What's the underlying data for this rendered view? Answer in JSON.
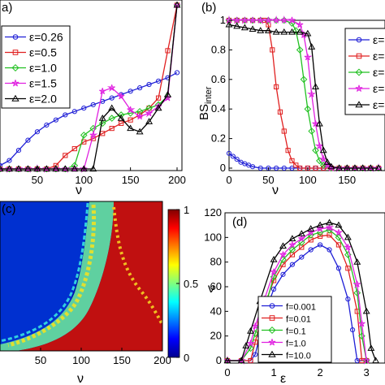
{
  "chart_data": [
    {
      "panel_label": "a)",
      "type": "line",
      "xlabel": "ν",
      "xlim": [
        10,
        200
      ],
      "ylim": [
        0,
        1
      ],
      "xticks": [
        50,
        100,
        150,
        200
      ],
      "legend_position": "top-left",
      "series": [
        {
          "name": "ε=0.26",
          "color": "#1f1fd6",
          "marker": "circle",
          "x": [
            10,
            20,
            30,
            40,
            50,
            60,
            70,
            80,
            90,
            100,
            110,
            120,
            130,
            140,
            150,
            160,
            170,
            180,
            190,
            200
          ],
          "y": [
            0.02,
            0.05,
            0.11,
            0.17,
            0.22,
            0.26,
            0.29,
            0.32,
            0.34,
            0.36,
            0.38,
            0.4,
            0.42,
            0.44,
            0.46,
            0.48,
            0.5,
            0.52,
            0.54,
            0.57
          ]
        },
        {
          "name": "ε=0.5",
          "color": "#e02020",
          "marker": "square",
          "x": [
            10,
            20,
            30,
            40,
            50,
            60,
            70,
            80,
            90,
            100,
            110,
            120,
            130,
            140,
            150,
            160,
            170,
            180,
            190,
            200
          ],
          "y": [
            0,
            0,
            0,
            0,
            0,
            0,
            0.02,
            0.08,
            0.12,
            0.16,
            0.18,
            0.21,
            0.24,
            0.27,
            0.29,
            0.32,
            0.36,
            0.42,
            0.7,
            0.97
          ]
        },
        {
          "name": "ε=1.0",
          "color": "#20c020",
          "marker": "diamond",
          "x": [
            10,
            20,
            30,
            40,
            50,
            60,
            70,
            80,
            90,
            100,
            110,
            120,
            130,
            140,
            150,
            160,
            170,
            180,
            190,
            200
          ],
          "y": [
            0,
            0,
            0,
            0,
            0,
            0,
            0,
            0,
            0.02,
            0.2,
            0.24,
            0.27,
            0.3,
            0.32,
            0.33,
            0.34,
            0.36,
            0.38,
            0.43,
            0.97
          ]
        },
        {
          "name": "ε=1.5",
          "color": "#e020e0",
          "marker": "star",
          "x": [
            10,
            20,
            30,
            40,
            50,
            60,
            70,
            80,
            90,
            100,
            110,
            120,
            130,
            140,
            150,
            160,
            170,
            180,
            190,
            200
          ],
          "y": [
            0,
            0,
            0,
            0,
            0,
            0,
            0,
            0,
            0,
            0,
            0.2,
            0.46,
            0.48,
            0.43,
            0.35,
            0.31,
            0.33,
            0.37,
            0.42,
            0.97
          ]
        },
        {
          "name": "ε=2.0",
          "color": "#000000",
          "marker": "triangle",
          "x": [
            10,
            20,
            30,
            40,
            50,
            60,
            70,
            80,
            90,
            100,
            110,
            120,
            130,
            140,
            150,
            160,
            170,
            180,
            190,
            200
          ],
          "y": [
            0,
            0,
            0,
            0,
            0,
            0,
            0,
            0,
            0,
            0,
            0,
            0.3,
            0.36,
            0.3,
            0.24,
            0.22,
            0.28,
            0.36,
            0.44,
            0.97
          ]
        }
      ]
    },
    {
      "panel_label": "(b)",
      "type": "line",
      "xlabel": "ν",
      "ylabel": "BS",
      "ylabel_sub": "inter",
      "xlim": [
        0,
        190
      ],
      "ylim": [
        0,
        1
      ],
      "xticks": [
        0,
        50,
        100,
        150
      ],
      "yticks": [
        0,
        0.2,
        0.4,
        0.6,
        0.8,
        1
      ],
      "legend_position": "right",
      "series": [
        {
          "name": "ε=",
          "color": "#1f1fd6",
          "marker": "circle",
          "x": [
            0,
            5,
            10,
            15,
            20,
            25,
            30,
            40,
            50,
            60,
            70,
            80,
            90,
            100,
            110,
            120,
            130,
            140,
            150,
            160,
            170,
            180,
            190
          ],
          "y": [
            0.1,
            0.08,
            0.06,
            0.04,
            0.03,
            0.02,
            0.01,
            0,
            0,
            0,
            0,
            0,
            0,
            0,
            0,
            0,
            0,
            0,
            0,
            0,
            0,
            0,
            0
          ]
        },
        {
          "name": "ε=",
          "color": "#e02020",
          "marker": "square",
          "x": [
            0,
            10,
            20,
            30,
            40,
            45,
            50,
            55,
            60,
            65,
            70,
            75,
            80,
            85,
            90,
            100,
            110,
            120,
            130,
            140,
            150,
            160,
            170,
            180,
            190
          ],
          "y": [
            1,
            1,
            1,
            1,
            1,
            1,
            0.97,
            0.8,
            0.55,
            0.38,
            0.25,
            0.12,
            0.05,
            0.02,
            0,
            0,
            0,
            0,
            0,
            0,
            0,
            0,
            0,
            0,
            0
          ]
        },
        {
          "name": "ε=",
          "color": "#20c020",
          "marker": "diamond",
          "x": [
            0,
            10,
            20,
            30,
            40,
            50,
            60,
            70,
            80,
            85,
            90,
            95,
            100,
            105,
            110,
            115,
            120,
            130,
            140,
            150,
            160,
            170,
            180,
            190
          ],
          "y": [
            1,
            1,
            1,
            1,
            1,
            1,
            1,
            1,
            0.98,
            0.93,
            0.8,
            0.6,
            0.4,
            0.25,
            0.12,
            0.05,
            0.02,
            0,
            0,
            0,
            0,
            0,
            0,
            0
          ]
        },
        {
          "name": "ε=",
          "color": "#e020e0",
          "marker": "star",
          "x": [
            0,
            10,
            20,
            30,
            40,
            50,
            60,
            70,
            80,
            90,
            95,
            100,
            105,
            110,
            115,
            120,
            125,
            130,
            140,
            150,
            160,
            170,
            180,
            190
          ],
          "y": [
            1,
            1,
            1,
            1,
            1,
            1,
            1,
            1,
            1,
            0.97,
            0.9,
            0.75,
            0.5,
            0.3,
            0.15,
            0.06,
            0.02,
            0,
            0,
            0,
            0,
            0,
            0,
            0
          ]
        },
        {
          "name": "ε=",
          "color": "#000000",
          "marker": "triangle",
          "x": [
            0,
            10,
            20,
            30,
            40,
            50,
            60,
            70,
            80,
            90,
            100,
            105,
            110,
            115,
            120,
            125,
            130,
            140,
            150,
            160,
            170,
            180,
            190
          ],
          "y": [
            0.97,
            0.96,
            0.95,
            0.94,
            0.93,
            0.93,
            0.92,
            0.92,
            0.92,
            0.92,
            0.91,
            0.82,
            0.55,
            0.3,
            0.12,
            0.04,
            0.01,
            0,
            0,
            0,
            0,
            0,
            0
          ]
        }
      ]
    },
    {
      "panel_label": "(c)",
      "type": "heatmap",
      "xlabel": "ν",
      "xlim": [
        0,
        200
      ],
      "xticks": [
        50,
        100,
        150,
        200
      ],
      "colorbar": {
        "min": 0,
        "max": 1,
        "ticks": [
          0,
          0.5,
          1
        ],
        "colormap": "jet"
      }
    },
    {
      "panel_label": "(d)",
      "type": "line",
      "xlabel": "ε",
      "ylabel": "ν",
      "xlim": [
        0,
        3.4
      ],
      "ylim": [
        0,
        120
      ],
      "xticks": [
        0,
        1,
        2,
        3
      ],
      "yticks": [
        0,
        20,
        40,
        60,
        80,
        100,
        120
      ],
      "legend_position": "bottom-left",
      "series": [
        {
          "name": "f=0.001",
          "color": "#1f1fd6",
          "marker": "circle",
          "x": [
            0,
            0.3,
            0.5,
            0.6,
            0.7,
            0.8,
            1.0,
            1.2,
            1.4,
            1.6,
            1.8,
            2.0,
            2.2,
            2.4,
            2.6,
            2.7,
            2.8,
            3.0
          ],
          "y": [
            0,
            0,
            0,
            5,
            20,
            38,
            58,
            70,
            78,
            84,
            90,
            94,
            90,
            75,
            50,
            25,
            0,
            0
          ]
        },
        {
          "name": "f=0.01",
          "color": "#e02020",
          "marker": "square",
          "x": [
            0,
            0.3,
            0.5,
            0.6,
            0.7,
            0.8,
            1.0,
            1.2,
            1.4,
            1.6,
            1.8,
            2.0,
            2.2,
            2.4,
            2.6,
            2.8,
            2.9,
            3.0
          ],
          "y": [
            0,
            0,
            0,
            15,
            30,
            45,
            65,
            78,
            86,
            92,
            98,
            101,
            102,
            94,
            75,
            40,
            0,
            0
          ]
        },
        {
          "name": "f=0.1",
          "color": "#20c020",
          "marker": "diamond",
          "x": [
            0,
            0.3,
            0.5,
            0.6,
            0.8,
            1.0,
            1.2,
            1.4,
            1.6,
            1.8,
            2.0,
            2.2,
            2.4,
            2.6,
            2.8,
            2.9,
            3.0
          ],
          "y": [
            0,
            0,
            10,
            22,
            42,
            68,
            82,
            90,
            96,
            102,
            104,
            106,
            100,
            86,
            55,
            20,
            0
          ]
        },
        {
          "name": "f=1.0",
          "color": "#e020e0",
          "marker": "star",
          "x": [
            0,
            0.3,
            0.5,
            0.6,
            0.8,
            1.0,
            1.2,
            1.4,
            1.6,
            1.8,
            2.0,
            2.2,
            2.4,
            2.6,
            2.8,
            2.9,
            3.0
          ],
          "y": [
            0,
            0,
            14,
            28,
            50,
            72,
            86,
            94,
            99,
            104,
            107,
            108,
            104,
            92,
            62,
            30,
            0
          ]
        },
        {
          "name": "f=10.0",
          "color": "#000000",
          "marker": "triangle",
          "x": [
            0,
            0.3,
            0.4,
            0.5,
            0.7,
            1.0,
            1.2,
            1.4,
            1.6,
            1.8,
            2.0,
            2.2,
            2.4,
            2.6,
            2.8,
            3.0,
            3.1,
            3.2
          ],
          "y": [
            0,
            0,
            12,
            24,
            48,
            82,
            93,
            99,
            103,
            107,
            110,
            112,
            110,
            100,
            80,
            40,
            10,
            0
          ]
        }
      ]
    }
  ]
}
